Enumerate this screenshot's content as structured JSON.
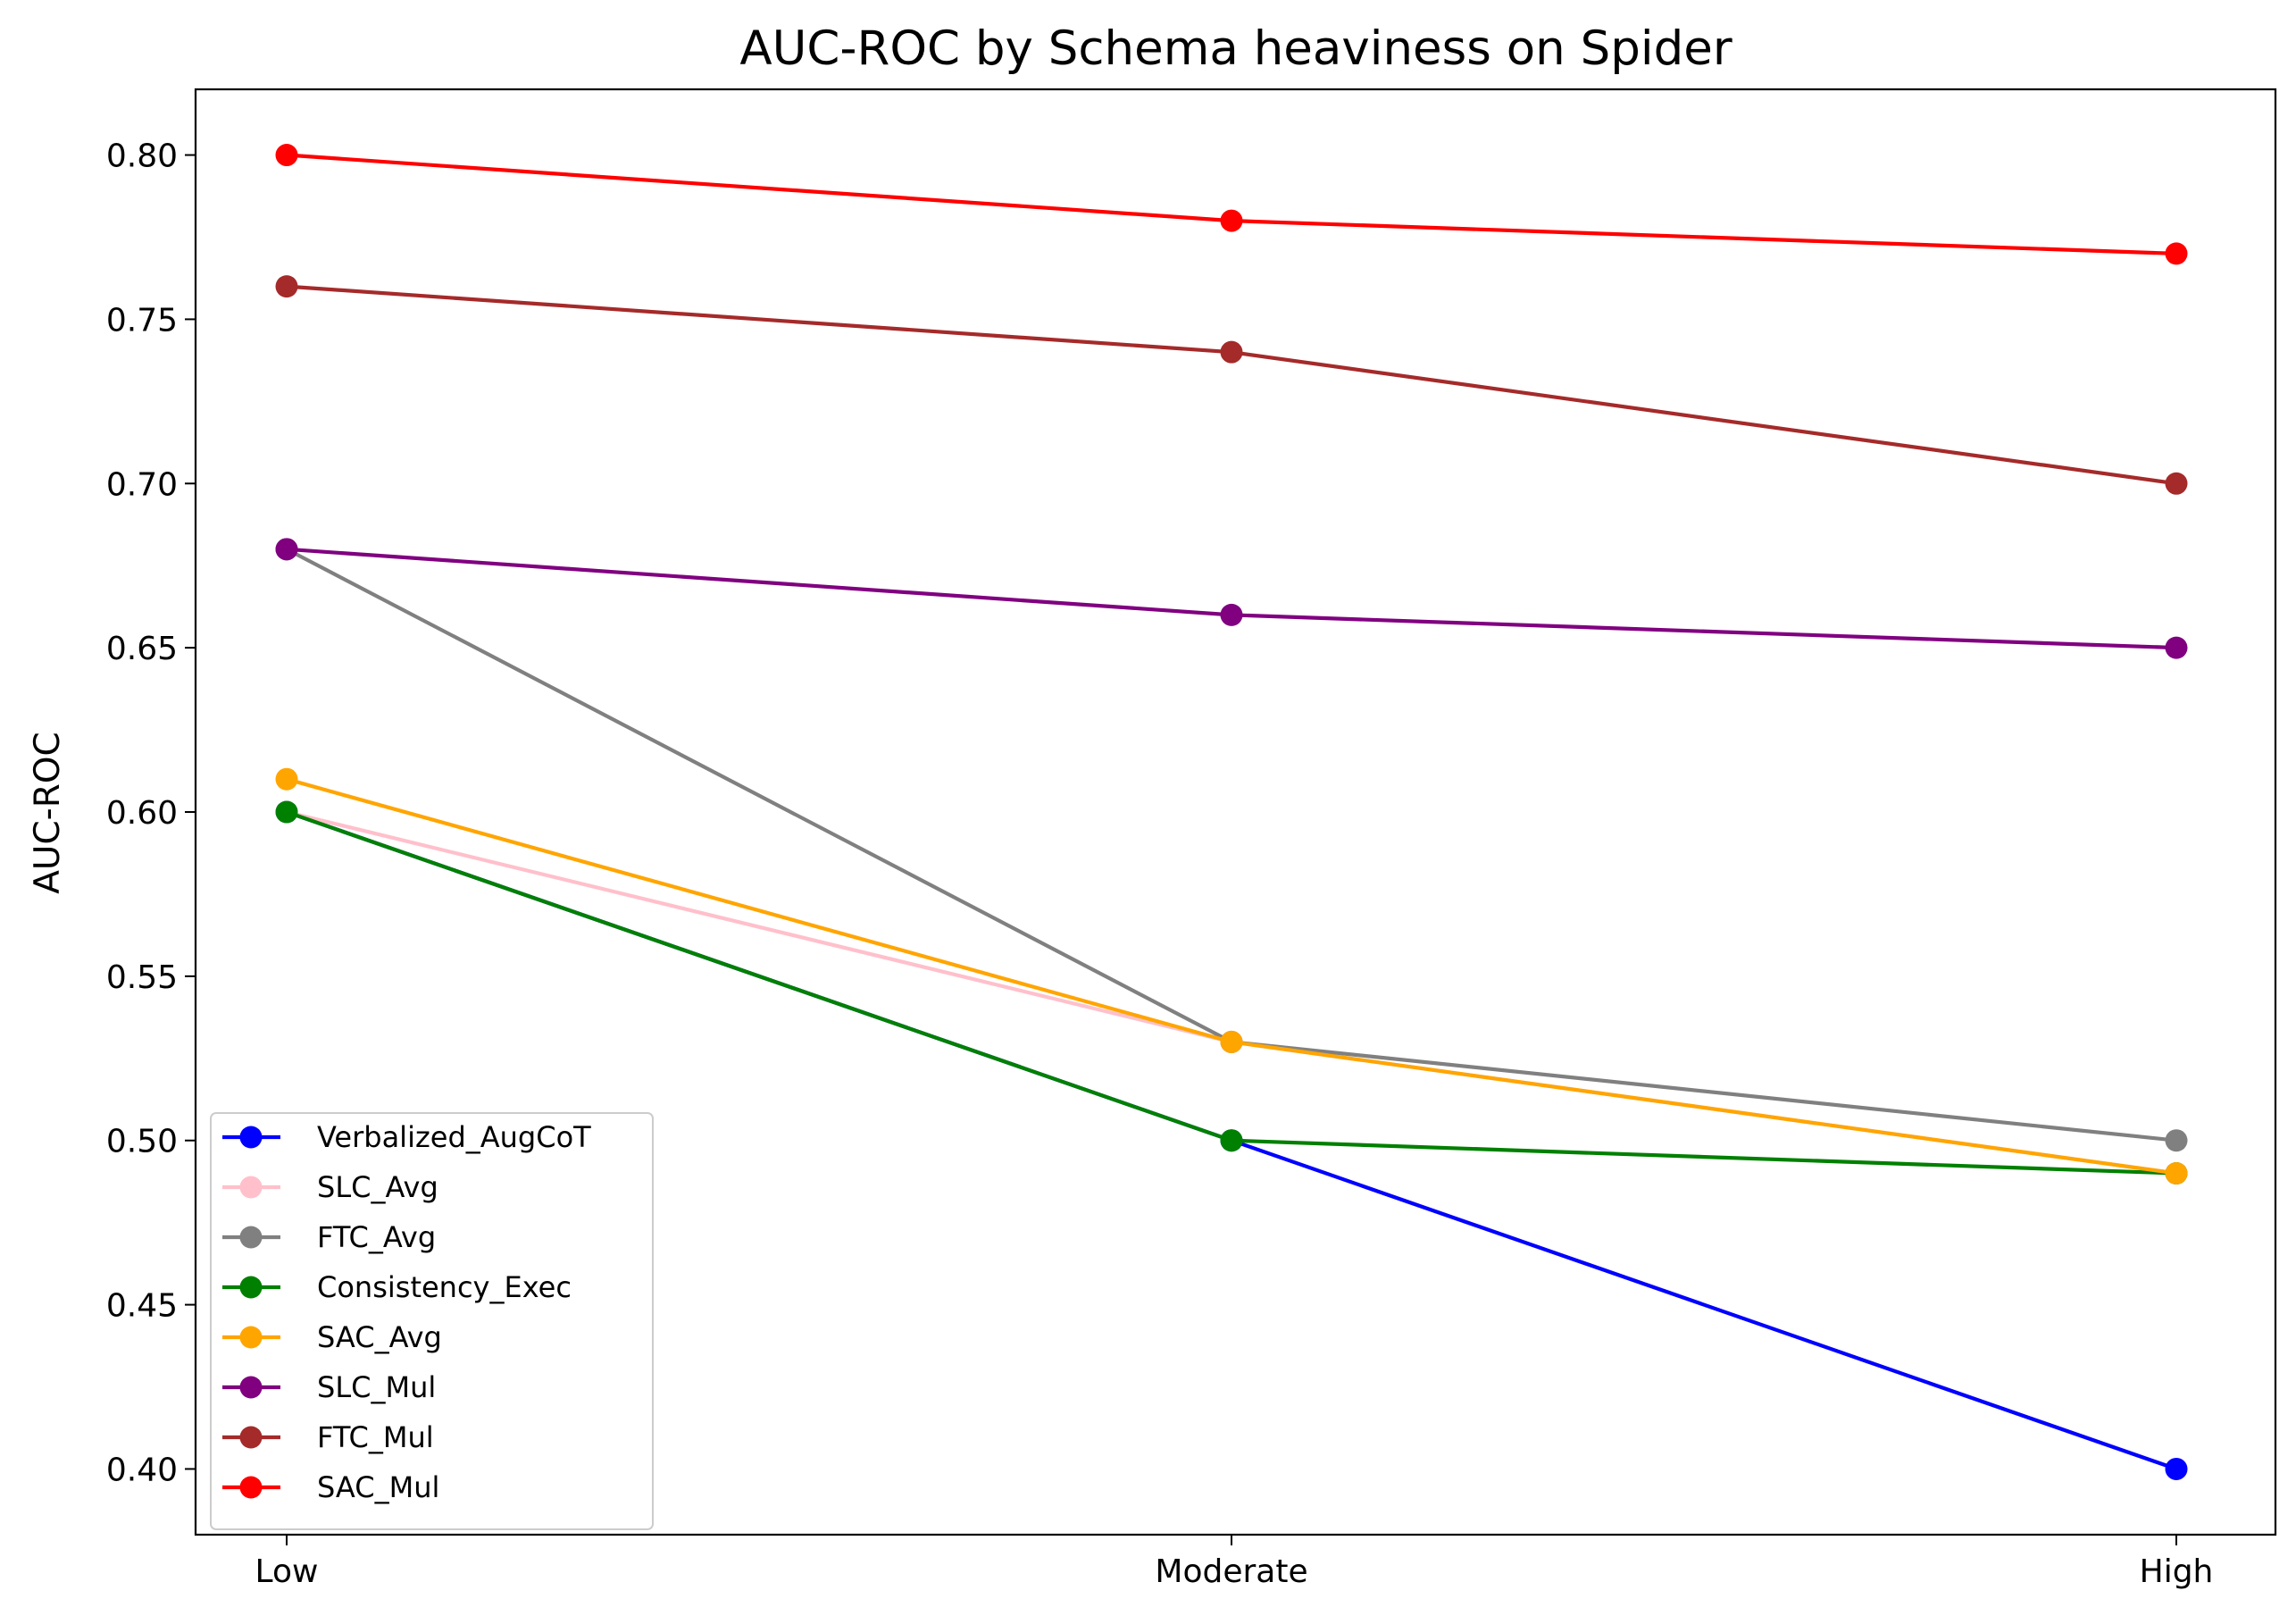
{
  "chart_data": {
    "type": "line",
    "title": "AUC-ROC by Schema heaviness on Spider",
    "xlabel": "",
    "ylabel": "AUC-ROC",
    "categories": [
      "Low",
      "Moderate",
      "High"
    ],
    "ylim": [
      0.38,
      0.82
    ],
    "yticks": [
      "0.40",
      "0.45",
      "0.50",
      "0.55",
      "0.60",
      "0.65",
      "0.70",
      "0.75",
      "0.80"
    ],
    "grid": false,
    "legend_position": "lower-left",
    "series": [
      {
        "name": "Verbalized_AugCoT",
        "color": "#0000ff",
        "values": [
          0.6,
          0.5,
          0.4
        ]
      },
      {
        "name": "SLC_Avg",
        "color": "#ffc0cb",
        "values": [
          0.6,
          0.53,
          0.49
        ]
      },
      {
        "name": "FTC_Avg",
        "color": "#808080",
        "values": [
          0.68,
          0.53,
          0.5
        ]
      },
      {
        "name": "Consistency_Exec",
        "color": "#008000",
        "values": [
          0.6,
          0.5,
          0.49
        ]
      },
      {
        "name": "SAC_Avg",
        "color": "#ffa500",
        "values": [
          0.61,
          0.53,
          0.49
        ]
      },
      {
        "name": "SLC_Mul",
        "color": "#800080",
        "values": [
          0.68,
          0.66,
          0.65
        ]
      },
      {
        "name": "FTC_Mul",
        "color": "#a52a2a",
        "values": [
          0.76,
          0.74,
          0.7
        ]
      },
      {
        "name": "SAC_Mul",
        "color": "#ff0000",
        "values": [
          0.8,
          0.78,
          0.77
        ]
      }
    ]
  }
}
